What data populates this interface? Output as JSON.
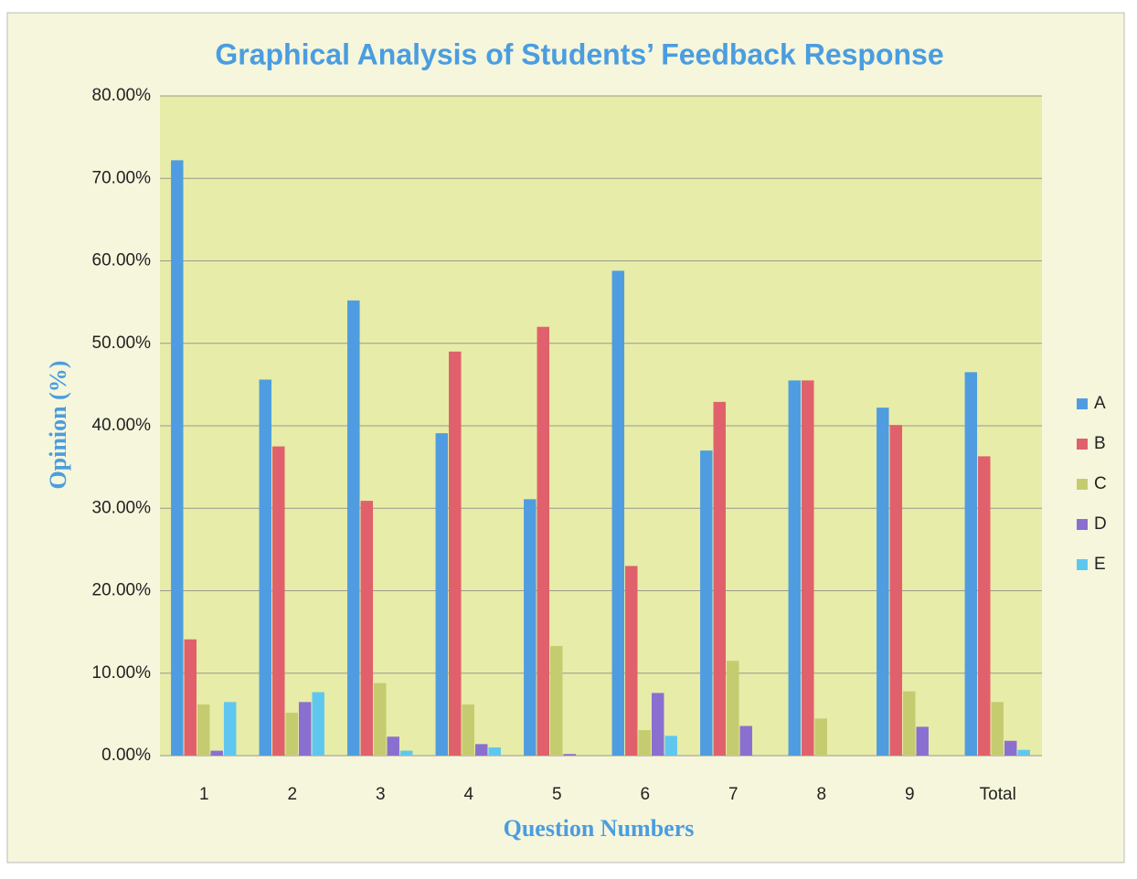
{
  "chart_data": {
    "type": "bar",
    "title": "Graphical Analysis of Students’ Feedback Response",
    "x_label": "Question Numbers",
    "y_label": "Opinion (%)",
    "categories": [
      "1",
      "2",
      "3",
      "4",
      "5",
      "6",
      "7",
      "8",
      "9",
      "Total"
    ],
    "series": [
      {
        "name": "A",
        "color": "#4f9de0",
        "values": [
          72.2,
          45.6,
          55.2,
          39.1,
          31.1,
          58.8,
          37.0,
          45.5,
          42.2,
          46.5
        ]
      },
      {
        "name": "B",
        "color": "#e0616b",
        "values": [
          14.1,
          37.5,
          30.9,
          49.0,
          52.0,
          23.0,
          42.9,
          45.5,
          40.1,
          36.3
        ]
      },
      {
        "name": "C",
        "color": "#c5cc70",
        "values": [
          6.2,
          5.2,
          8.8,
          6.2,
          13.3,
          3.1,
          11.5,
          4.5,
          7.8,
          6.5
        ]
      },
      {
        "name": "D",
        "color": "#8b6fd0",
        "values": [
          0.6,
          6.5,
          2.3,
          1.4,
          0.2,
          7.6,
          3.6,
          0,
          3.5,
          1.8
        ]
      },
      {
        "name": "E",
        "color": "#5fc7ef",
        "values": [
          6.5,
          7.7,
          0.6,
          1.0,
          0,
          2.4,
          0,
          0,
          0,
          0.7
        ]
      }
    ],
    "ylim": [
      0,
      80
    ],
    "yticks": [
      {
        "value": 0,
        "label": "0.00%"
      },
      {
        "value": 10,
        "label": "10.00%"
      },
      {
        "value": 20,
        "label": "20.00%"
      },
      {
        "value": 30,
        "label": "30.00%"
      },
      {
        "value": 40,
        "label": "40.00%"
      },
      {
        "value": 50,
        "label": "50.00%"
      },
      {
        "value": 60,
        "label": "60.00%"
      },
      {
        "value": 70,
        "label": "70.00%"
      },
      {
        "value": 80,
        "label": "80.00%"
      }
    ],
    "grid": true,
    "legend": "right"
  }
}
